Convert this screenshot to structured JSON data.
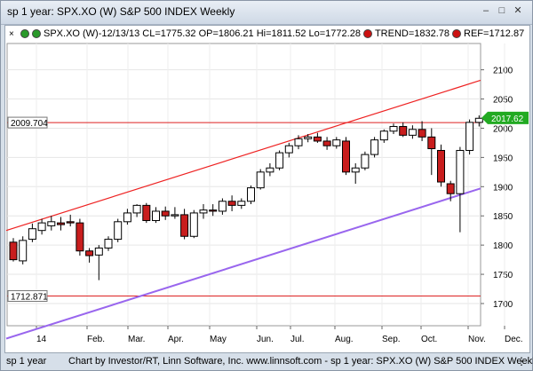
{
  "window": {
    "title": "sp 1 year: SPX.XO (W) S&P 500 INDEX Weekly"
  },
  "legend": {
    "close_label": "×",
    "main_text": "SPX.XO (W)-12/13/13 CL=1775.32 OP=1806.21 Hi=1811.52 Lo=1772.28",
    "trend_text": "TREND=1832.78",
    "ref_text": "REF=1712.87",
    "colors": {
      "dot1": "#2a9a2a",
      "dot2": "#2a9a2a",
      "trend_dot": "#cc1111",
      "ref_dot": "#cc1111"
    }
  },
  "statusbar": {
    "left": "sp 1 year",
    "right": "Chart by Investor/RT, Linn Software, Inc. www.linnsoft.com - sp 1 year: SPX.XO (W) S&P 500 INDEX Weekly"
  },
  "chart_data": {
    "type": "candlestick",
    "title": "",
    "y_ticks": [
      1700,
      1750,
      1800,
      1850,
      1900,
      1950,
      2000,
      2050,
      2100
    ],
    "y_range": [
      1662,
      2145
    ],
    "x_labels": [
      "14",
      "Feb.",
      "Mar.",
      "Apr.",
      "May",
      "Jun.",
      "Jul.",
      "Aug.",
      "Sep.",
      "Oct.",
      "Nov.",
      "Dec."
    ],
    "horizontal_lines": [
      {
        "value": 2009.704,
        "label": "2009.704",
        "color": "#dd2222"
      },
      {
        "value": 1712.871,
        "label": "1712.871",
        "color": "#dd2222"
      }
    ],
    "last_price": {
      "value": 2017.62,
      "label": "2017.62",
      "color": "#22aa22"
    },
    "channel_lines": [
      {
        "name": "upper",
        "start": [
          0,
          1825
        ],
        "end": [
          52,
          2082
        ],
        "color": "#ee2222"
      },
      {
        "name": "lower",
        "start": [
          0,
          1640
        ],
        "end": [
          52,
          1897
        ],
        "color": "#9966ee"
      }
    ],
    "candles": [
      {
        "o": 1805,
        "h": 1812,
        "l": 1772,
        "c": 1775
      },
      {
        "o": 1773,
        "h": 1815,
        "l": 1767,
        "c": 1808
      },
      {
        "o": 1810,
        "h": 1837,
        "l": 1805,
        "c": 1828
      },
      {
        "o": 1825,
        "h": 1845,
        "l": 1818,
        "c": 1838
      },
      {
        "o": 1833,
        "h": 1850,
        "l": 1825,
        "c": 1840
      },
      {
        "o": 1838,
        "h": 1848,
        "l": 1825,
        "c": 1835
      },
      {
        "o": 1840,
        "h": 1852,
        "l": 1832,
        "c": 1838
      },
      {
        "o": 1838,
        "h": 1845,
        "l": 1782,
        "c": 1790
      },
      {
        "o": 1790,
        "h": 1795,
        "l": 1770,
        "c": 1782
      },
      {
        "o": 1783,
        "h": 1800,
        "l": 1740,
        "c": 1795
      },
      {
        "o": 1795,
        "h": 1815,
        "l": 1790,
        "c": 1810
      },
      {
        "o": 1810,
        "h": 1845,
        "l": 1805,
        "c": 1840
      },
      {
        "o": 1840,
        "h": 1862,
        "l": 1835,
        "c": 1855
      },
      {
        "o": 1855,
        "h": 1870,
        "l": 1848,
        "c": 1868
      },
      {
        "o": 1868,
        "h": 1872,
        "l": 1838,
        "c": 1842
      },
      {
        "o": 1842,
        "h": 1865,
        "l": 1838,
        "c": 1858
      },
      {
        "o": 1858,
        "h": 1866,
        "l": 1843,
        "c": 1850
      },
      {
        "o": 1850,
        "h": 1865,
        "l": 1845,
        "c": 1852
      },
      {
        "o": 1852,
        "h": 1862,
        "l": 1810,
        "c": 1815
      },
      {
        "o": 1815,
        "h": 1860,
        "l": 1812,
        "c": 1855
      },
      {
        "o": 1855,
        "h": 1870,
        "l": 1845,
        "c": 1860
      },
      {
        "o": 1860,
        "h": 1870,
        "l": 1850,
        "c": 1858
      },
      {
        "o": 1858,
        "h": 1880,
        "l": 1852,
        "c": 1875
      },
      {
        "o": 1875,
        "h": 1885,
        "l": 1858,
        "c": 1868
      },
      {
        "o": 1868,
        "h": 1880,
        "l": 1862,
        "c": 1875
      },
      {
        "o": 1875,
        "h": 1902,
        "l": 1870,
        "c": 1898
      },
      {
        "o": 1898,
        "h": 1930,
        "l": 1895,
        "c": 1925
      },
      {
        "o": 1925,
        "h": 1940,
        "l": 1918,
        "c": 1932
      },
      {
        "o": 1932,
        "h": 1962,
        "l": 1928,
        "c": 1958
      },
      {
        "o": 1958,
        "h": 1975,
        "l": 1950,
        "c": 1970
      },
      {
        "o": 1970,
        "h": 1988,
        "l": 1964,
        "c": 1982
      },
      {
        "o": 1982,
        "h": 1990,
        "l": 1976,
        "c": 1985
      },
      {
        "o": 1985,
        "h": 1992,
        "l": 1975,
        "c": 1978
      },
      {
        "o": 1978,
        "h": 1985,
        "l": 1963,
        "c": 1970
      },
      {
        "o": 1970,
        "h": 1985,
        "l": 1965,
        "c": 1980
      },
      {
        "o": 1978,
        "h": 1985,
        "l": 1920,
        "c": 1925
      },
      {
        "o": 1925,
        "h": 1940,
        "l": 1905,
        "c": 1932
      },
      {
        "o": 1932,
        "h": 1960,
        "l": 1928,
        "c": 1955
      },
      {
        "o": 1955,
        "h": 1985,
        "l": 1950,
        "c": 1980
      },
      {
        "o": 1980,
        "h": 1998,
        "l": 1975,
        "c": 1995
      },
      {
        "o": 1995,
        "h": 2008,
        "l": 1990,
        "c": 2003
      },
      {
        "o": 2003,
        "h": 2010,
        "l": 1985,
        "c": 1988
      },
      {
        "o": 1988,
        "h": 2005,
        "l": 1982,
        "c": 1998
      },
      {
        "o": 1998,
        "h": 2012,
        "l": 1978,
        "c": 1985
      },
      {
        "o": 1985,
        "h": 2000,
        "l": 1920,
        "c": 1965
      },
      {
        "o": 1962,
        "h": 1972,
        "l": 1900,
        "c": 1908
      },
      {
        "o": 1905,
        "h": 1910,
        "l": 1875,
        "c": 1888
      },
      {
        "o": 1888,
        "h": 1968,
        "l": 1822,
        "c": 1962
      },
      {
        "o": 1962,
        "h": 2015,
        "l": 1955,
        "c": 2010
      },
      {
        "o": 2010,
        "h": 2022,
        "l": 2003,
        "c": 2017
      }
    ]
  }
}
